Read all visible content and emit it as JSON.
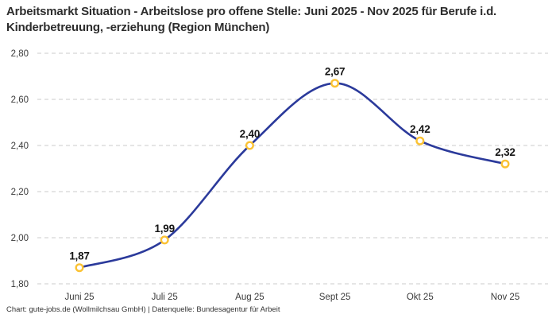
{
  "title": "Arbeitsmarkt Situation - Arbeitslose pro offene Stelle: Juni 2025 - Nov 2025 für Berufe i.d. Kinderbetreuung, -erziehung (Region München)",
  "footer": "Chart: gute-jobs.de (Wollmilchsau GmbH) | Datenquelle: Bundesagentur für Arbeit",
  "chart_data": {
    "type": "line",
    "title": "Arbeitsmarkt Situation - Arbeitslose pro offene Stelle: Juni 2025 - Nov 2025 für Berufe i.d. Kinderbetreuung, -erziehung (Region München)",
    "categories": [
      "Juni 25",
      "Juli 25",
      "Aug 25",
      "Sept 25",
      "Okt 25",
      "Nov 25"
    ],
    "values": [
      1.87,
      1.99,
      2.4,
      2.67,
      2.42,
      2.32
    ],
    "value_labels": [
      "1,87",
      "1,99",
      "2,40",
      "2,67",
      "2,42",
      "2,32"
    ],
    "y_ticks": [
      "2,80",
      "2,60",
      "2,40",
      "2,20",
      "2,00",
      "1,80"
    ],
    "y_tick_values": [
      2.8,
      2.6,
      2.4,
      2.2,
      2.0,
      1.8
    ],
    "ylim": [
      1.8,
      2.8
    ],
    "xlabel": "",
    "ylabel": "",
    "legend": "none",
    "grid": "horizontal-dashed",
    "smoothing": "spline",
    "line_color": "#2b3a9b",
    "marker_color": "#fbc233",
    "marker_fill": "#ffffff",
    "grid_color": "#cbcbcb"
  }
}
